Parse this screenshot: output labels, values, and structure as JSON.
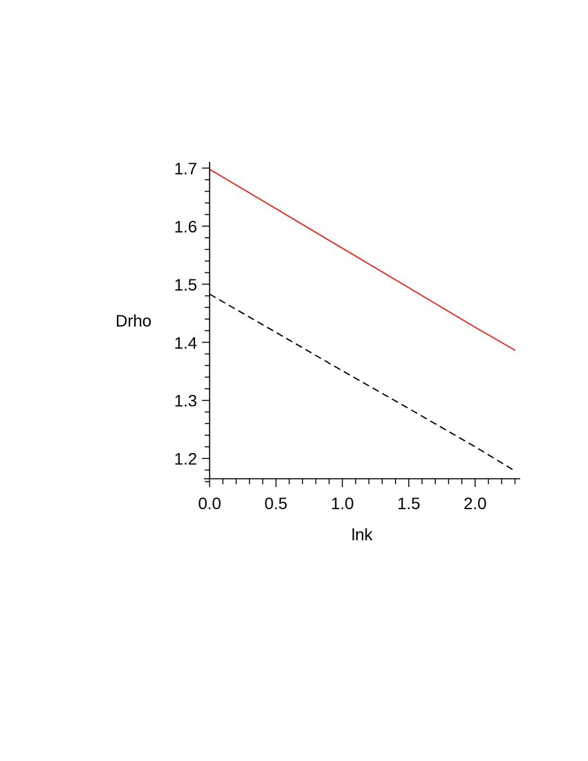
{
  "chart_data": {
    "type": "line",
    "xlabel": "lnk",
    "ylabel": "Drho",
    "xlim": [
      0,
      2.303
    ],
    "ylim": [
      1.165,
      1.7
    ],
    "x_ticks": [
      0.0,
      0.5,
      1.0,
      1.5,
      2.0
    ],
    "x_tick_labels": [
      "0.0",
      "0.5",
      "1.0",
      "1.5",
      "2.0"
    ],
    "y_ticks": [
      1.2,
      1.3,
      1.4,
      1.5,
      1.6,
      1.7
    ],
    "y_tick_labels": [
      "1.2",
      "1.3",
      "1.4",
      "1.5",
      "1.6",
      "1.7"
    ],
    "x_minor_step": 0.1,
    "y_minor_step": 0.02,
    "grid": false,
    "legend": "none",
    "series": [
      {
        "color": "#e8231d",
        "style": "solid",
        "x": [
          0.0,
          0.5,
          1.0,
          1.5,
          2.0,
          2.303
        ],
        "y": [
          1.698,
          1.63,
          1.562,
          1.494,
          1.426,
          1.386
        ]
      },
      {
        "color": "#000000",
        "style": "dashed",
        "x": [
          0.0,
          0.5,
          1.0,
          1.5,
          2.0,
          2.303
        ],
        "y": [
          1.483,
          1.417,
          1.351,
          1.286,
          1.22,
          1.178
        ]
      }
    ]
  }
}
